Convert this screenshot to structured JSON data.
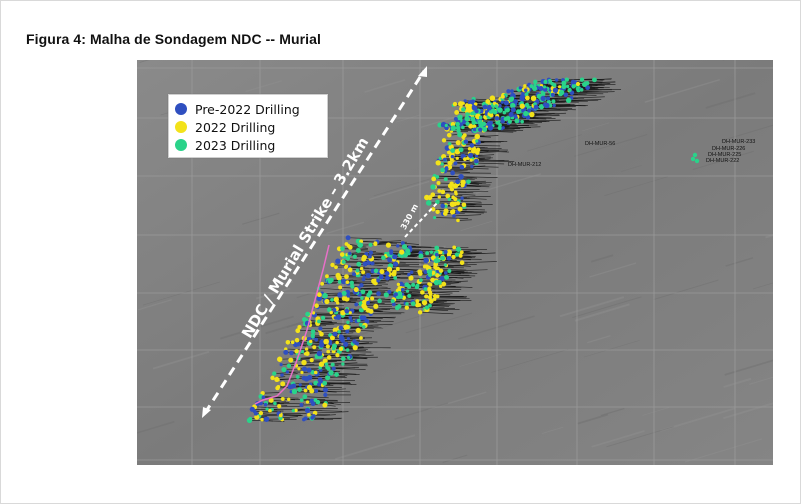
{
  "figure": {
    "title": "Figura 4: Malha de Sondagem NDC -- Murial"
  },
  "legend": {
    "items": [
      {
        "label": "Pre-2022 Drilling",
        "color": "#2f4fc0"
      },
      {
        "label": "2022 Drilling",
        "color": "#f3e21a"
      },
      {
        "label": "2023 Drilling",
        "color": "#2ad38a"
      }
    ]
  },
  "annotations": {
    "strike_label": "NDC / Murial Strike – 3.2km",
    "spacing_label": "330 m",
    "hole_labels": [
      "DH-MUR-233",
      "DH-MUR-226",
      "DH-MUR-225",
      "DH-MUR-222",
      "DH-MUR-212",
      "DH-MUR-56"
    ]
  },
  "colors": {
    "map_background": "#7e7e7e",
    "grid_lines": "#9a9a9a",
    "arrow": "#ffffff",
    "boundary_trace": "#e870c8"
  }
}
